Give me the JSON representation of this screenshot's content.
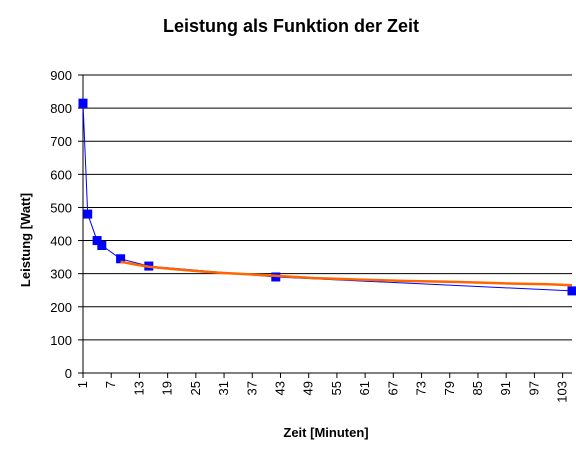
{
  "chart_data": {
    "type": "line",
    "title": "Leistung als Funktion der Zeit",
    "xlabel": "Zeit [Minuten]",
    "ylabel": "Leistung [Watt]",
    "xlim": [
      1,
      105
    ],
    "ylim": [
      0,
      900
    ],
    "x_ticks": [
      1,
      7,
      13,
      19,
      25,
      31,
      37,
      43,
      49,
      55,
      61,
      67,
      73,
      79,
      85,
      91,
      97,
      103
    ],
    "y_ticks": [
      0,
      100,
      200,
      300,
      400,
      500,
      600,
      700,
      800,
      900
    ],
    "grid": "horizontal",
    "legend": "none",
    "series": [
      {
        "style": "markers-line",
        "color": "#0000ff",
        "x": [
          1,
          2,
          4,
          5,
          9,
          15,
          42,
          105
        ],
        "y": [
          815,
          480,
          400,
          385,
          345,
          323,
          290,
          248
        ]
      },
      {
        "style": "trend-line",
        "color": "#ff6600",
        "x": [
          9,
          12,
          15,
          20,
          25,
          30,
          35,
          40,
          45,
          50,
          60,
          70,
          80,
          90,
          100,
          105
        ],
        "y": [
          336,
          328,
          321,
          314,
          308,
          303,
          299,
          295,
          291,
          287,
          282,
          278,
          275,
          271,
          268,
          265
        ]
      }
    ]
  }
}
